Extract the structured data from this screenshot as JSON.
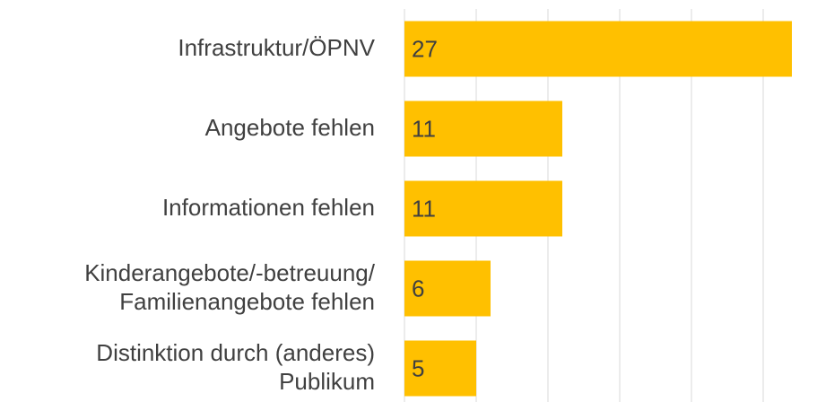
{
  "chart_data": {
    "type": "barh",
    "categories": [
      "Infrastruktur/ÖPNV",
      "Angebote fehlen",
      "Informationen fehlen",
      "Kinderangebote/-betreuung/\nFamilienangebote fehlen",
      "Distinktion durch (anderes)\nPublikum"
    ],
    "values": [
      27,
      11,
      11,
      6,
      5
    ],
    "color": "#ffc000",
    "xlim": [
      0,
      28.75
    ],
    "xticks": [
      0,
      5,
      10,
      15,
      20,
      25
    ],
    "grid": true
  }
}
